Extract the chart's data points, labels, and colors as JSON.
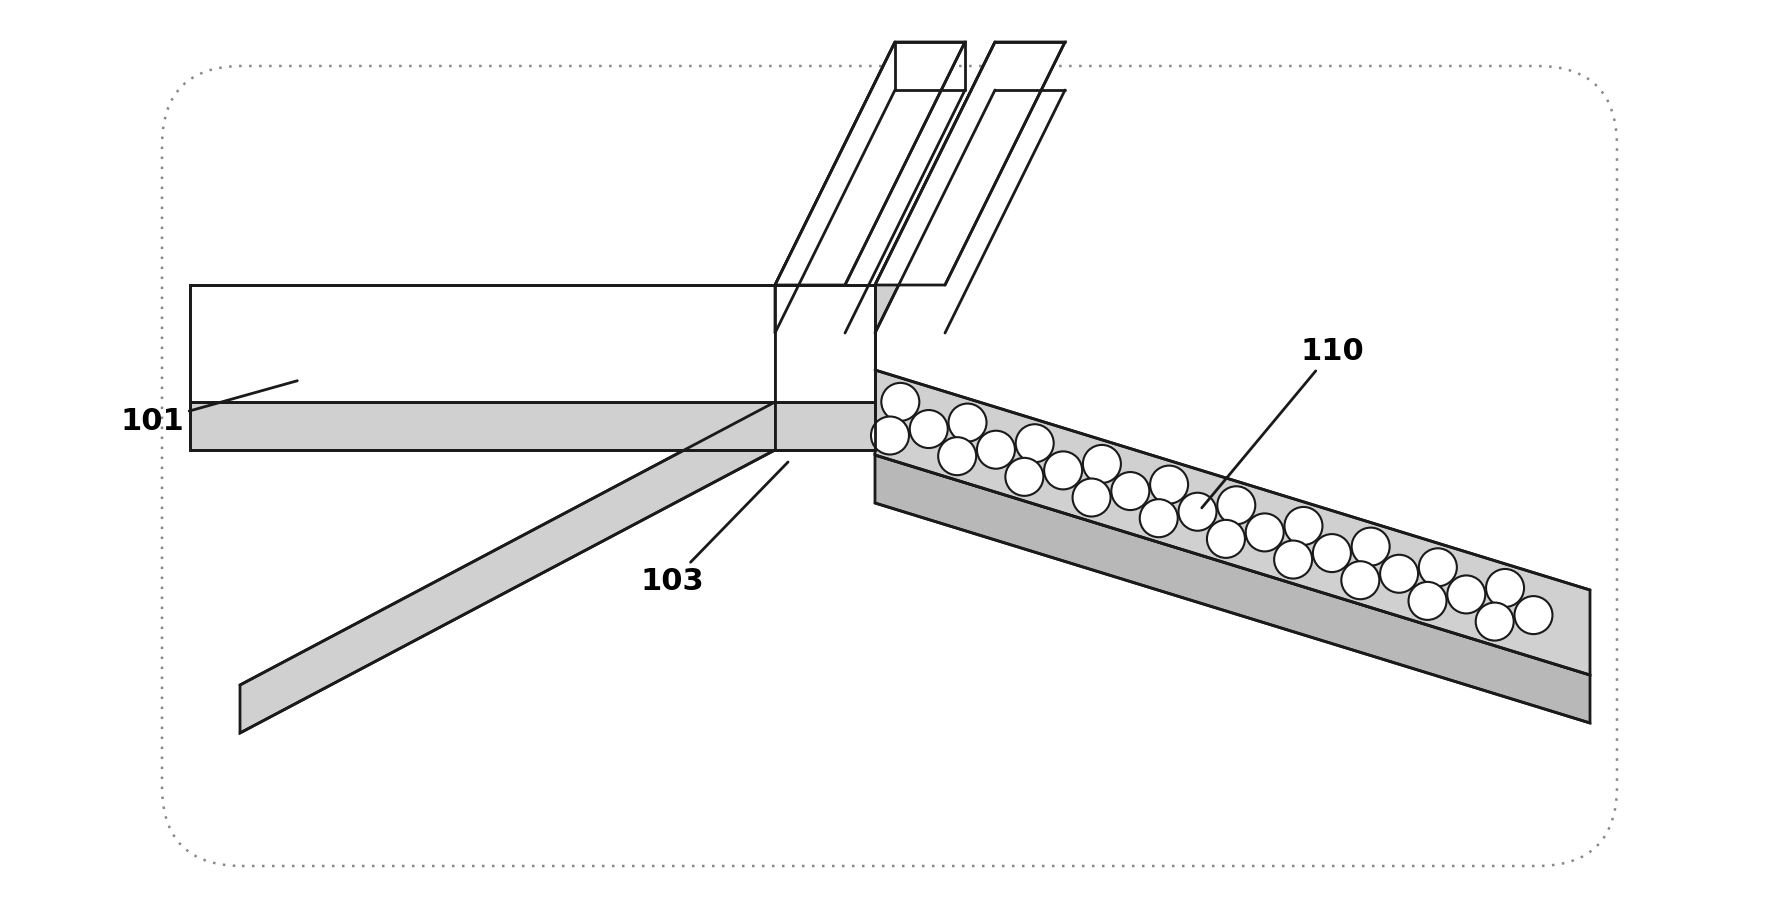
{
  "fig_width": 17.91,
  "fig_height": 9.18,
  "bg_color": "#ffffff",
  "line_color": "#1a1a1a",
  "line_width": 2.0,
  "top_face_color": "#ffffff",
  "side_face_color": "#d0d0d0",
  "dark_side_color": "#b8b8b8",
  "bead_color": "#ffffff",
  "bead_edge_color": "#1a1a1a",
  "bead_bg_color": "#c8c8c8",
  "border_color": "#888888",
  "label_101": "101",
  "label_103": "103",
  "label_110": "110",
  "label_fontsize": 22
}
